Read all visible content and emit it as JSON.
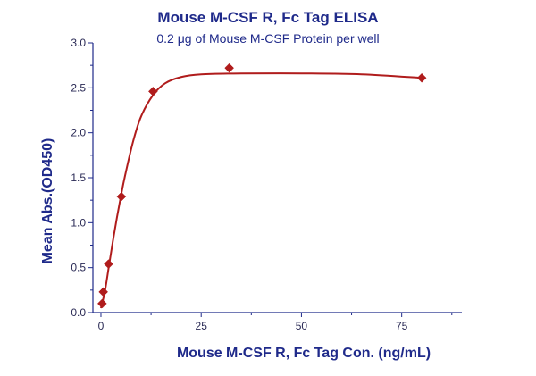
{
  "chart_data": {
    "type": "scatter",
    "title": "Mouse M-CSF R, Fc Tag ELISA",
    "subtitle": "0.2 μg of Mouse M-CSF Protein per well",
    "xlabel": "Mouse M-CSF R, Fc Tag Con. (ng/mL)",
    "ylabel": "Mean Abs.(OD450)",
    "xlim": [
      -2,
      90
    ],
    "ylim": [
      0,
      3.0
    ],
    "x_ticks": [
      0,
      25,
      50,
      75
    ],
    "y_ticks": [
      0.0,
      0.5,
      1.0,
      1.5,
      2.0,
      2.5,
      3.0
    ],
    "x_tick_labels": [
      "0",
      "25",
      "50",
      "75"
    ],
    "y_tick_labels": [
      "0.0",
      "0.5",
      "1.0",
      "1.5",
      "2.0",
      "2.5",
      "3.0"
    ],
    "grid": false,
    "legend": "none",
    "series": [
      {
        "marker": "diamond",
        "color": "#b01c1c",
        "points": [
          {
            "x": 0.3,
            "y": 0.1
          },
          {
            "x": 0.6,
            "y": 0.23
          },
          {
            "x": 1.9,
            "y": 0.54
          },
          {
            "x": 5.1,
            "y": 1.29
          },
          {
            "x": 13.0,
            "y": 2.46
          },
          {
            "x": 32.0,
            "y": 2.72
          },
          {
            "x": 80.0,
            "y": 2.61
          }
        ],
        "fit_curve": [
          {
            "x": 0.0,
            "y": 0.05
          },
          {
            "x": 1.0,
            "y": 0.24
          },
          {
            "x": 2.0,
            "y": 0.52
          },
          {
            "x": 3.0,
            "y": 0.8
          },
          {
            "x": 4.0,
            "y": 1.06
          },
          {
            "x": 5.0,
            "y": 1.3
          },
          {
            "x": 6.0,
            "y": 1.52
          },
          {
            "x": 8.0,
            "y": 1.9
          },
          {
            "x": 10.0,
            "y": 2.18
          },
          {
            "x": 13.0,
            "y": 2.42
          },
          {
            "x": 16.0,
            "y": 2.55
          },
          {
            "x": 20.0,
            "y": 2.62
          },
          {
            "x": 25.0,
            "y": 2.65
          },
          {
            "x": 35.0,
            "y": 2.66
          },
          {
            "x": 50.0,
            "y": 2.66
          },
          {
            "x": 65.0,
            "y": 2.65
          },
          {
            "x": 80.0,
            "y": 2.61
          }
        ]
      }
    ]
  }
}
